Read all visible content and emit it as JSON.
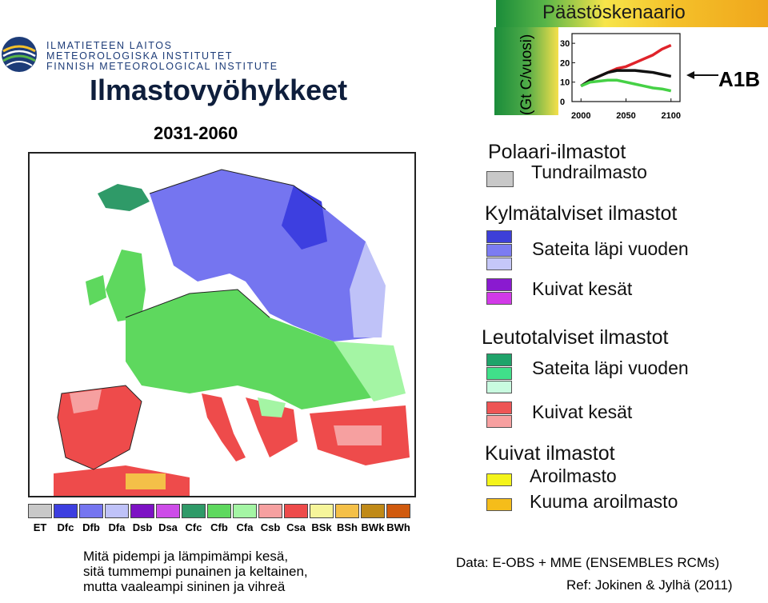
{
  "header": {
    "logo_lines": [
      "ILMATIETEEN LAITOS",
      "METEOROLOGISKA INSTITUTET",
      "FINNISH METEOROLOGICAL INSTITUTE"
    ],
    "title": "Ilmastovyöhykkeet",
    "period": "2031-2060"
  },
  "scenario_chart": {
    "title": "Päästöskenaario",
    "ylabel": "(Gt C/vuosi)",
    "scenario_label": "A1B",
    "y_ticks": [
      "30",
      "20",
      "10",
      "0"
    ],
    "x_ticks": [
      "2000",
      "2050",
      "2100"
    ],
    "colors": {
      "high": "#e0232a",
      "a1b": "#111111",
      "low": "#46d146"
    },
    "series": [
      {
        "x": [
          2000,
          2010,
          2020,
          2030,
          2040,
          2050,
          2060,
          2070,
          2080,
          2090,
          2100
        ],
        "y": [
          8,
          11,
          13,
          15,
          17,
          18,
          20,
          22,
          24,
          27,
          29
        ],
        "color": "#e0232a"
      },
      {
        "x": [
          2000,
          2010,
          2020,
          2030,
          2040,
          2050,
          2060,
          2070,
          2080,
          2090,
          2100
        ],
        "y": [
          8,
          11,
          13,
          15,
          16,
          16,
          16,
          15.5,
          15,
          14,
          13
        ],
        "color": "#111111"
      },
      {
        "x": [
          2000,
          2010,
          2020,
          2030,
          2040,
          2050,
          2060,
          2070,
          2080,
          2090,
          2100
        ],
        "y": [
          8,
          10,
          10.5,
          11,
          11,
          10,
          9,
          8,
          7,
          6.5,
          5.5
        ],
        "color": "#46d146"
      }
    ]
  },
  "climate_legend": {
    "polar": {
      "heading": "Polaari-ilmastot",
      "tundra": "Tundrailmasto",
      "color": "#c8c8c8"
    },
    "cold": {
      "heading": "Kylmätalviset ilmastot",
      "wet_label": "Sateita läpi vuoden",
      "wet_colors": [
        "#3d3fd8",
        "#7c7cf2",
        "#c5c7f8"
      ],
      "dry_label": "Kuivat kesät",
      "dry_colors": [
        "#8a1ad0",
        "#d23ae8"
      ]
    },
    "mild": {
      "heading": "Leutotalviset ilmastot",
      "wet_label": "Sateita läpi vuoden",
      "wet_colors": [
        "#1fa36a",
        "#40e08a",
        "#c9fbe0"
      ],
      "dry_label": "Kuivat kesät",
      "dry_colors": [
        "#ee5555",
        "#f7a0a0"
      ]
    },
    "dry": {
      "heading": "Kuivat ilmastot",
      "semi_label": "Aroilmasto",
      "semi_color": "#f4f41a",
      "hot_label": "Kuuma aroilmasto",
      "hot_color": "#f5bd1a"
    }
  },
  "koppen_legend": [
    {
      "code": "ET",
      "color": "#c8c8c8"
    },
    {
      "code": "Dfc",
      "color": "#3d3fe0"
    },
    {
      "code": "Dfb",
      "color": "#7575f0"
    },
    {
      "code": "Dfa",
      "color": "#bfc2f8"
    },
    {
      "code": "Dsb",
      "color": "#7d12c4"
    },
    {
      "code": "Dsa",
      "color": "#cd4ce8"
    },
    {
      "code": "Cfc",
      "color": "#2f9a68"
    },
    {
      "code": "Cfb",
      "color": "#5ed85e"
    },
    {
      "code": "Cfa",
      "color": "#a4f5a4"
    },
    {
      "code": "Csb",
      "color": "#f6a0a0"
    },
    {
      "code": "Csa",
      "color": "#ee4b4b"
    },
    {
      "code": "BSk",
      "color": "#f6f59a"
    },
    {
      "code": "BSh",
      "color": "#f4c048"
    },
    {
      "code": "BWk",
      "color": "#c08a18"
    },
    {
      "code": "BWh",
      "color": "#d05a0e"
    }
  ],
  "caption": {
    "lines": [
      "Mitä pidempi ja lämpimämpi kesä,",
      "sitä tummempi punainen ja keltainen,",
      "mutta vaaleampi sininen ja vihreä"
    ]
  },
  "footer": {
    "data_source": "Data: E-OBS + MME (ENSEMBLES RCMs)",
    "reference": "Ref: Jokinen & Jylhä (2011)"
  }
}
